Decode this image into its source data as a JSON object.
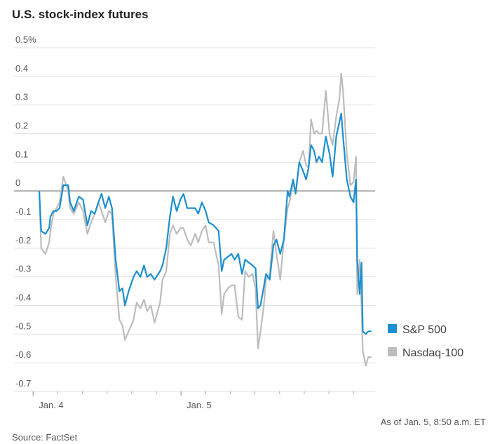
{
  "chart_data": {
    "type": "line",
    "title": "U.S. stock-index futures",
    "note": "As of Jan. 5, 8:50 a.m. ET",
    "source": "Source: FactSet",
    "x": [
      1.0,
      1.3,
      2.0,
      2.6,
      2.8,
      3.3,
      3.8,
      4.3,
      4.9,
      5.7,
      6.0,
      6.6,
      7.4,
      8.1,
      8.8,
      9.4,
      10.0,
      10.6,
      11.1,
      11.7,
      12.3,
      12.8,
      13.4,
      14.0,
      14.5,
      14.9,
      15.5,
      16.3,
      16.8,
      17.4,
      18.0,
      18.5,
      19.1,
      19.7,
      20.6,
      21.0,
      21.6,
      22.2,
      22.7,
      23.3,
      23.9,
      24.4,
      25.0,
      25.6,
      26.3,
      26.8,
      27.4,
      28.0,
      28.5,
      29.3,
      30.1,
      30.6,
      31.0,
      31.6,
      32.2,
      32.7,
      33.3,
      33.9,
      34.4,
      35.0,
      35.6,
      36.1,
      36.5,
      36.9,
      37.4,
      37.8,
      38.4,
      39.0,
      39.5,
      40.1,
      40.7,
      41.3,
      41.6,
      42.2,
      42.6,
      43.2,
      43.8,
      44.3,
      44.7,
      45.1,
      45.6,
      46.0,
      46.4,
      46.9,
      47.5,
      48.1,
      48.6,
      49.2,
      49.7,
      50.0,
      50.3,
      50.9,
      51.5,
      52.0,
      52.4,
      52.6,
      53.0,
      53.3,
      53.5,
      54.0,
      54.4,
      54.9
    ],
    "series": [
      {
        "name": "Nasdaq-100",
        "color": "#bdbdbd",
        "values": [
          0,
          -0.2,
          -0.22,
          -0.18,
          -0.14,
          -0.08,
          -0.06,
          -0.04,
          0.05,
          0,
          -0.06,
          -0.08,
          -0.04,
          -0.07,
          -0.15,
          -0.11,
          -0.08,
          -0.04,
          -0.07,
          -0.11,
          -0.07,
          -0.08,
          -0.3,
          -0.45,
          -0.47,
          -0.52,
          -0.49,
          -0.45,
          -0.39,
          -0.41,
          -0.38,
          -0.42,
          -0.4,
          -0.46,
          -0.39,
          -0.31,
          -0.28,
          -0.15,
          -0.12,
          -0.15,
          -0.13,
          -0.13,
          -0.17,
          -0.19,
          -0.15,
          -0.18,
          -0.14,
          -0.12,
          -0.18,
          -0.18,
          -0.26,
          -0.43,
          -0.36,
          -0.34,
          -0.33,
          -0.33,
          -0.44,
          -0.45,
          -0.28,
          -0.3,
          -0.29,
          -0.34,
          -0.55,
          -0.49,
          -0.41,
          -0.31,
          -0.29,
          -0.14,
          -0.22,
          -0.31,
          -0.17,
          -0.06,
          -0.04,
          0.03,
          -0.01,
          0.1,
          0.14,
          0.09,
          0.08,
          0.25,
          0.2,
          0.21,
          0.2,
          0.2,
          0.35,
          0.2,
          0.16,
          0.26,
          0.32,
          0.41,
          0.35,
          0.13,
          0.02,
          0.03,
          0.12,
          -0.36,
          -0.24,
          -0.41,
          -0.56,
          -0.61,
          -0.58,
          -0.58
        ]
      },
      {
        "name": "S&P 500",
        "color": "#1b8fcf",
        "values": [
          0,
          -0.14,
          -0.15,
          -0.13,
          -0.09,
          -0.07,
          -0.07,
          -0.06,
          0.02,
          0.02,
          -0.04,
          -0.07,
          -0.02,
          -0.03,
          -0.12,
          -0.07,
          -0.08,
          -0.04,
          -0.01,
          -0.06,
          -0.02,
          -0.06,
          -0.24,
          -0.35,
          -0.34,
          -0.4,
          -0.35,
          -0.3,
          -0.28,
          -0.3,
          -0.26,
          -0.3,
          -0.29,
          -0.31,
          -0.28,
          -0.26,
          -0.2,
          -0.09,
          -0.02,
          -0.07,
          -0.03,
          -0.01,
          -0.06,
          -0.06,
          -0.06,
          -0.08,
          -0.04,
          -0.07,
          -0.11,
          -0.12,
          -0.14,
          -0.28,
          -0.24,
          -0.23,
          -0.22,
          -0.24,
          -0.22,
          -0.29,
          -0.24,
          -0.25,
          -0.26,
          -0.27,
          -0.41,
          -0.4,
          -0.34,
          -0.29,
          -0.31,
          -0.19,
          -0.17,
          -0.22,
          -0.17,
          0,
          -0.02,
          0.04,
          -0.01,
          0.1,
          0.07,
          0.04,
          0.08,
          0.16,
          0.14,
          0.1,
          0.12,
          0.1,
          0.19,
          0.13,
          0.05,
          0.19,
          0.24,
          0.27,
          0.19,
          0.04,
          -0.02,
          -0.04,
          0.04,
          -0.24,
          -0.36,
          -0.25,
          -0.49,
          -0.5,
          -0.49,
          -0.49
        ]
      }
    ],
    "legend_order": [
      1,
      0
    ],
    "xlim": [
      -3.1,
      55.5
    ],
    "xticks": [
      {
        "value": 0,
        "label": "Jan. 4"
      },
      {
        "value": 24,
        "label": "Jan. 5"
      }
    ],
    "x_minor_ticks": [
      4,
      8,
      12,
      16,
      20,
      28,
      32,
      36,
      40,
      44,
      48,
      52
    ],
    "ylim": [
      -0.7,
      0.5
    ],
    "yticks": [
      {
        "value": 0.5,
        "label": "0.5%"
      },
      0.4,
      0.3,
      0.2,
      0.1,
      0,
      -0.1,
      -0.2,
      -0.3,
      -0.4,
      -0.5,
      -0.6,
      -0.7
    ],
    "grid": true,
    "legend_position": "right"
  }
}
